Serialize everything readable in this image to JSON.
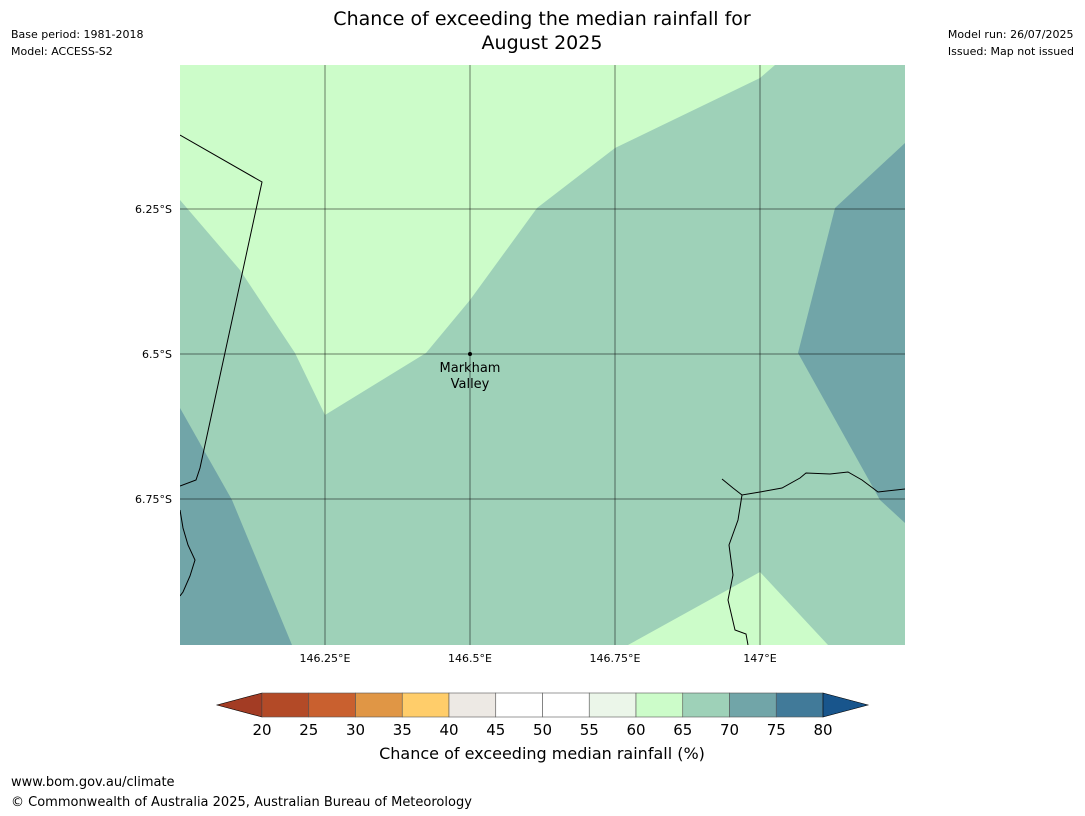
{
  "header": {
    "base_period": "Base period: 1981-2018",
    "model": "Model: ACCESS-S2",
    "model_run": "Model run: 26/07/2025",
    "issued": "Issued: Map not issued",
    "title_line1": "Chance of exceeding the median rainfall for",
    "title_line2": "August 2025"
  },
  "map": {
    "lat_labels": [
      "6.25°S",
      "6.5°S",
      "6.75°S"
    ],
    "lon_labels": [
      "146.25°E",
      "146.5°E",
      "146.75°E",
      "147°E"
    ],
    "place": {
      "name_line1": "Markham",
      "name_line2": "Valley",
      "lat": -6.5,
      "lon": 146.5
    }
  },
  "legend": {
    "label": "Chance of exceeding median rainfall (%)",
    "ticks": [
      "20",
      "25",
      "30",
      "35",
      "40",
      "45",
      "50",
      "55",
      "60",
      "65",
      "70",
      "75",
      "80"
    ],
    "colors": [
      "#a33c24",
      "#b34a27",
      "#c9602f",
      "#e09645",
      "#ffcd6a",
      "#ede9e4",
      "#ffffff",
      "#ffffff",
      "#ebf6e9",
      "#ccfcc9",
      "#9ed1b8",
      "#71a5a8",
      "#417a99",
      "#18558c"
    ]
  },
  "footer": {
    "url": "www.bom.gov.au/climate",
    "copyright": "© Commonwealth of Australia 2025, Australian Bureau of Meteorology"
  }
}
